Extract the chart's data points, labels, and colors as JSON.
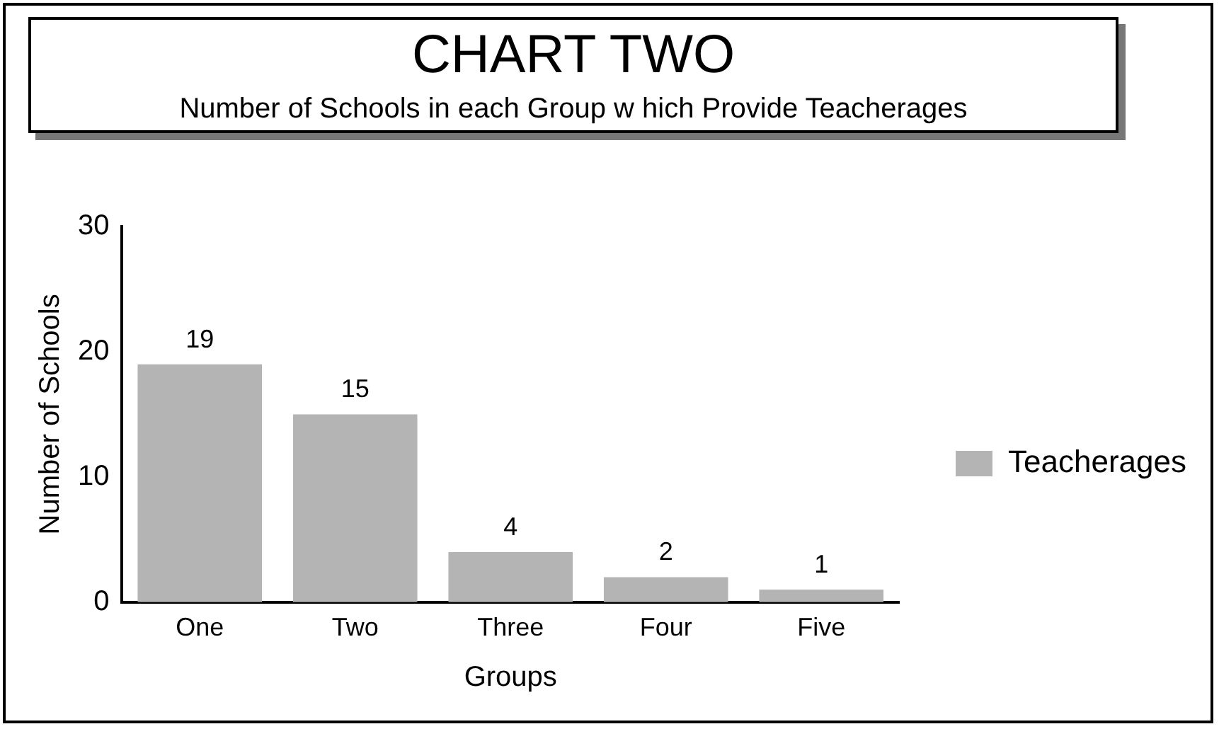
{
  "chart_data": {
    "type": "bar",
    "title": "CHART TWO",
    "subtitle": "Number of Schools in each Group w hich Provide Teacherages",
    "xlabel": "Groups",
    "ylabel": "Number of Schools",
    "categories": [
      "One",
      "Two",
      "Three",
      "Four",
      "Five"
    ],
    "series": [
      {
        "name": "Teacherages",
        "color": "#b4b4b4",
        "values": [
          19,
          15,
          4,
          2,
          1
        ]
      }
    ],
    "ylim": [
      0,
      30
    ],
    "yticks": [
      0,
      10,
      20,
      30
    ],
    "grid": false,
    "legend": "right",
    "data_labels": true
  }
}
